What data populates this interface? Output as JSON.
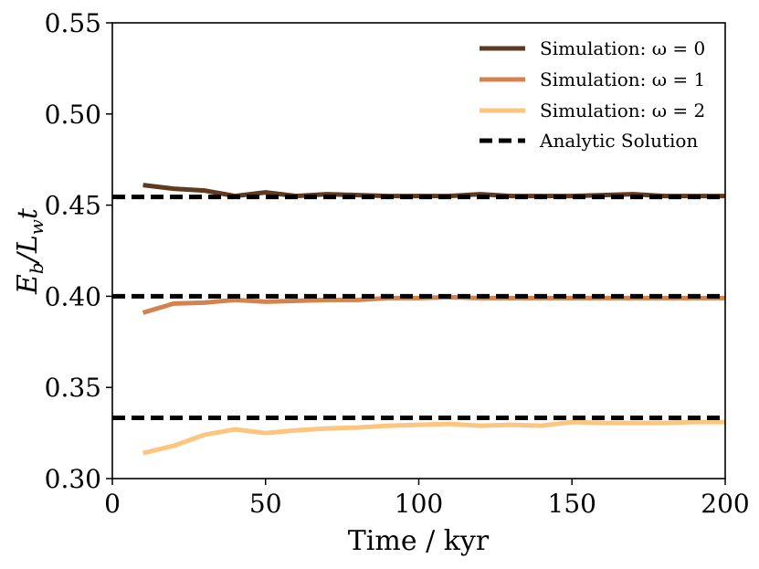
{
  "chart_data": {
    "type": "line",
    "title": "",
    "xlabel": "Time / kyr",
    "ylabel": "Eb/Lwt",
    "ylabel_main": "E",
    "ylabel_sub1": "b",
    "ylabel_mid": "/L",
    "ylabel_sub2": "w",
    "ylabel_end": "t",
    "xlim": [
      0,
      200
    ],
    "ylim": [
      0.3,
      0.55
    ],
    "x_ticks": [
      0,
      50,
      100,
      150,
      200
    ],
    "x_tick_labels": [
      "0",
      "50",
      "100",
      "150",
      "200"
    ],
    "y_ticks": [
      0.3,
      0.35,
      0.4,
      0.45,
      0.5,
      0.55
    ],
    "y_tick_labels": [
      "0.30",
      "0.35",
      "0.40",
      "0.45",
      "0.50",
      "0.55"
    ],
    "grid": false,
    "legend_position": "top-right",
    "x": [
      10,
      20,
      30,
      40,
      50,
      60,
      70,
      80,
      90,
      100,
      110,
      120,
      130,
      140,
      150,
      160,
      170,
      180,
      190,
      200
    ],
    "series": [
      {
        "name": "Simulation: ω = 0",
        "color": "#5e3a1e",
        "style": "solid",
        "values": [
          0.461,
          0.459,
          0.458,
          0.455,
          0.457,
          0.455,
          0.456,
          0.4555,
          0.455,
          0.455,
          0.455,
          0.456,
          0.455,
          0.455,
          0.455,
          0.4555,
          0.456,
          0.455,
          0.455,
          0.455
        ]
      },
      {
        "name": "Simulation: ω = 1",
        "color": "#d4834f",
        "style": "solid",
        "values": [
          0.391,
          0.396,
          0.3965,
          0.398,
          0.397,
          0.3975,
          0.398,
          0.398,
          0.399,
          0.399,
          0.3995,
          0.399,
          0.399,
          0.399,
          0.399,
          0.399,
          0.399,
          0.399,
          0.399,
          0.399
        ]
      },
      {
        "name": "Simulation: ω = 2",
        "color": "#fdc57e",
        "style": "solid",
        "values": [
          0.314,
          0.318,
          0.324,
          0.327,
          0.325,
          0.3265,
          0.3275,
          0.328,
          0.329,
          0.3295,
          0.33,
          0.329,
          0.3295,
          0.329,
          0.331,
          0.3305,
          0.3305,
          0.3305,
          0.331,
          0.331
        ]
      },
      {
        "name": "Analytic Solution",
        "color": "#000000",
        "style": "dashed",
        "constant_levels": [
          0.4545,
          0.4,
          0.3333
        ]
      }
    ]
  }
}
